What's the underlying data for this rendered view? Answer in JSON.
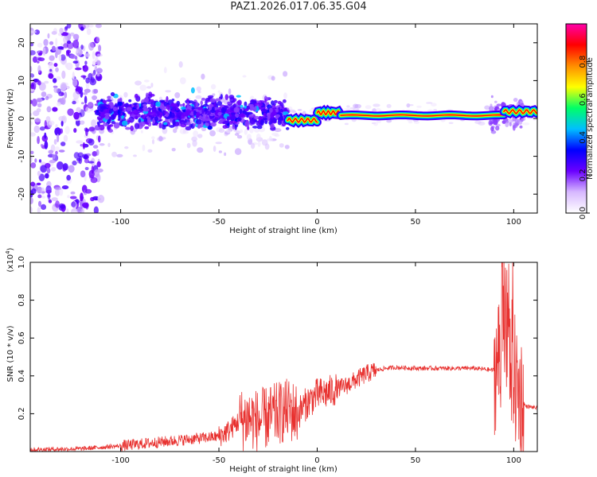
{
  "title": "PAZ1.2026.017.06.35.G04",
  "chart_data": [
    {
      "type": "heatmap",
      "name": "spectrogram",
      "xlabel": "Height of straight line (km)",
      "ylabel": "Frequency (Hz)",
      "xlim": [
        -146,
        112
      ],
      "ylim": [
        -25,
        25
      ],
      "xticks": [
        -100,
        -50,
        0,
        50,
        100
      ],
      "yticks": [
        -20,
        -10,
        0,
        10,
        20
      ],
      "ridge": {
        "description": "Dominant signal band near 1-2 Hz",
        "segments": [
          {
            "x_start": -15,
            "x_end": 0,
            "freq": -0.5
          },
          {
            "x_start": 0,
            "x_end": 12,
            "freq": 1.5
          },
          {
            "x_start": 12,
            "x_end": 95,
            "freq": 0.8
          },
          {
            "x_start": 95,
            "x_end": 112,
            "freq": 1.8
          }
        ]
      },
      "colorbar": {
        "label": "Normalized spectral amplitude",
        "range": [
          0,
          1
        ],
        "ticks": [
          "0.0",
          "0.2",
          "0.4",
          "0.6",
          "0.8"
        ],
        "colors": [
          "#ffffff",
          "#d7b8ff",
          "#6a00ff",
          "#0000ff",
          "#00bfff",
          "#00ff66",
          "#ffff00",
          "#ff8c00",
          "#ff0000",
          "#ff00aa"
        ]
      }
    },
    {
      "type": "line",
      "name": "snr",
      "xlabel": "Height of straight line (km)",
      "ylabel": "SNR (10 * v/v)",
      "scale_label_prefix": "(x10",
      "scale_label_exp": "4",
      "scale_label_suffix": ")",
      "xlim": [
        -146,
        112
      ],
      "ylim": [
        0,
        1.0
      ],
      "xticks": [
        -100,
        -50,
        0,
        50,
        100
      ],
      "yticks": [
        "0.2",
        "0.4",
        "0.6",
        "0.8",
        "1.0"
      ],
      "color": "#e8312f",
      "series": [
        {
          "name": "SNR",
          "x": [
            -146,
            -120,
            -100,
            -80,
            -60,
            -50,
            -45,
            -40,
            -35,
            -30,
            -25,
            -20,
            -15,
            -10,
            -5,
            0,
            5,
            10,
            15,
            20,
            25,
            30,
            35,
            40,
            50,
            60,
            70,
            80,
            90,
            93,
            95,
            97,
            100,
            103,
            106,
            112
          ],
          "values": [
            0.01,
            0.015,
            0.03,
            0.05,
            0.07,
            0.08,
            0.11,
            0.16,
            0.18,
            0.16,
            0.18,
            0.2,
            0.22,
            0.2,
            0.26,
            0.3,
            0.31,
            0.33,
            0.35,
            0.38,
            0.41,
            0.43,
            0.44,
            0.445,
            0.44,
            0.44,
            0.44,
            0.44,
            0.43,
            0.5,
            0.7,
            0.6,
            0.4,
            0.3,
            0.24,
            0.23
          ]
        }
      ]
    }
  ]
}
